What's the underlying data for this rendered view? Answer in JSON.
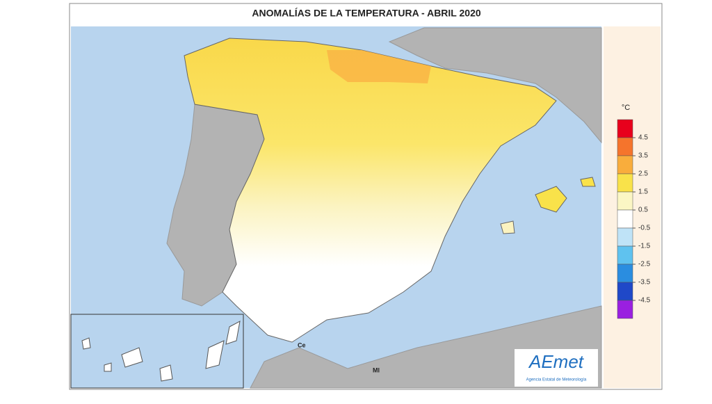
{
  "title": "ANOMALÍAS DE LA TEMPERATURA - ABRIL 2020",
  "legend": {
    "unit": "°C",
    "ticks": [
      4.5,
      3.5,
      2.5,
      1.5,
      0.5,
      -0.5,
      -1.5,
      -2.5,
      -3.5,
      -4.5
    ],
    "colors": [
      "#e8001c",
      "#f5742c",
      "#f9ad3c",
      "#f9e24a",
      "#fbf6c4",
      "#ffffff",
      "#bfe3f7",
      "#5fc2ef",
      "#2a8de0",
      "#1f48c8",
      "#9a1fe0"
    ]
  },
  "places": [
    "Ce",
    "Ml"
  ],
  "logo": {
    "name": "AEmet",
    "subtitle": "Agencia Estatal de Meteorología"
  }
}
